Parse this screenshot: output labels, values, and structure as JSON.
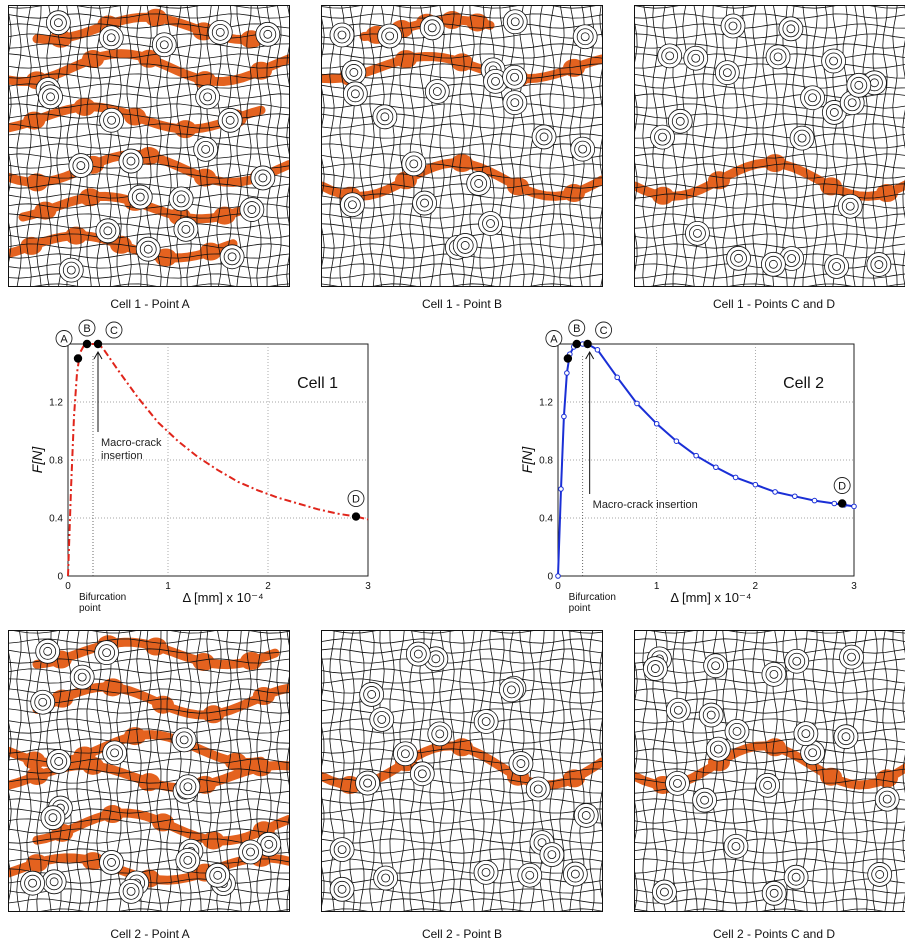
{
  "mesh_panels": {
    "top": [
      {
        "caption": "Cell 1 - Point A"
      },
      {
        "caption": "Cell 1 - Point B"
      },
      {
        "caption": "Cell 1 - Points C and D"
      }
    ],
    "bottom": [
      {
        "caption": "Cell 2 - Point A"
      },
      {
        "caption": "Cell 2 - Point B"
      },
      {
        "caption": "Cell 2 - Points C and D"
      }
    ],
    "mesh_color": "#111111",
    "damage_color": "#e4621f"
  },
  "chart_data": [
    {
      "type": "line",
      "title": "Cell 1",
      "xlabel": "Δ [mm] x 10⁻⁴",
      "ylabel": "F[N]",
      "xlim": [
        0,
        3
      ],
      "ylim": [
        0,
        1.6
      ],
      "x_ticks": [
        "0",
        "1",
        "2",
        "3"
      ],
      "y_ticks": [
        "0",
        "0.4",
        "0.8",
        "1.2"
      ],
      "grid": "dotted",
      "line_style": "dash-dot",
      "color": "#e0251b",
      "series": [
        {
          "values": [
            [
              0,
              0
            ],
            [
              0.03,
              0.6
            ],
            [
              0.06,
              1.1
            ],
            [
              0.09,
              1.4
            ],
            [
              0.12,
              1.54
            ],
            [
              0.16,
              1.59
            ],
            [
              0.2,
              1.6
            ],
            [
              0.25,
              1.6
            ],
            [
              0.3,
              1.6
            ],
            [
              0.35,
              1.57
            ],
            [
              0.5,
              1.42
            ],
            [
              0.7,
              1.23
            ],
            [
              0.9,
              1.06
            ],
            [
              1.1,
              0.93
            ],
            [
              1.3,
              0.82
            ],
            [
              1.5,
              0.73
            ],
            [
              1.7,
              0.65
            ],
            [
              1.9,
              0.59
            ],
            [
              2.1,
              0.54
            ],
            [
              2.3,
              0.5
            ],
            [
              2.5,
              0.46
            ],
            [
              2.7,
              0.43
            ],
            [
              2.88,
              0.41
            ],
            [
              3.0,
              0.39
            ]
          ]
        }
      ],
      "points": [
        {
          "label": "A",
          "x": 0.1,
          "y": 1.5
        },
        {
          "label": "B",
          "x": 0.19,
          "y": 1.6
        },
        {
          "label": "C",
          "x": 0.3,
          "y": 1.6
        },
        {
          "label": "D",
          "x": 2.88,
          "y": 0.41
        }
      ],
      "annotations": {
        "bifurcation": "Bifurcation point",
        "macrocrack": "Macro-crack insertion",
        "bifurcation_x": 0.25,
        "macrocrack_x": 0.3
      }
    },
    {
      "type": "line",
      "title": "Cell 2",
      "xlabel": "Δ [mm] x 10⁻⁴",
      "ylabel": "F[N]",
      "xlim": [
        0,
        3
      ],
      "ylim": [
        0,
        1.6
      ],
      "x_ticks": [
        "0",
        "1",
        "2",
        "3"
      ],
      "y_ticks": [
        "0",
        "0.4",
        "0.8",
        "1.2"
      ],
      "grid": "dotted",
      "line_style": "solid with circle markers",
      "color": "#1a2fd6",
      "series": [
        {
          "values": [
            [
              0,
              0
            ],
            [
              0.03,
              0.6
            ],
            [
              0.06,
              1.1
            ],
            [
              0.09,
              1.4
            ],
            [
              0.12,
              1.53
            ],
            [
              0.16,
              1.58
            ],
            [
              0.2,
              1.6
            ],
            [
              0.25,
              1.6
            ],
            [
              0.3,
              1.6
            ],
            [
              0.4,
              1.56
            ],
            [
              0.6,
              1.37
            ],
            [
              0.8,
              1.19
            ],
            [
              1.0,
              1.05
            ],
            [
              1.2,
              0.93
            ],
            [
              1.4,
              0.83
            ],
            [
              1.6,
              0.75
            ],
            [
              1.8,
              0.68
            ],
            [
              2.0,
              0.63
            ],
            [
              2.2,
              0.58
            ],
            [
              2.4,
              0.55
            ],
            [
              2.6,
              0.52
            ],
            [
              2.8,
              0.5
            ],
            [
              2.9,
              0.49
            ],
            [
              3.0,
              0.48
            ]
          ]
        }
      ],
      "points": [
        {
          "label": "A",
          "x": 0.1,
          "y": 1.5
        },
        {
          "label": "B",
          "x": 0.19,
          "y": 1.6
        },
        {
          "label": "C",
          "x": 0.3,
          "y": 1.6
        },
        {
          "label": "D",
          "x": 2.88,
          "y": 0.5
        }
      ],
      "annotations": {
        "bifurcation": "Bifurcation point",
        "macrocrack": "Macro-crack insertion",
        "bifurcation_x": 0.25,
        "macrocrack_x": 0.25
      }
    }
  ]
}
